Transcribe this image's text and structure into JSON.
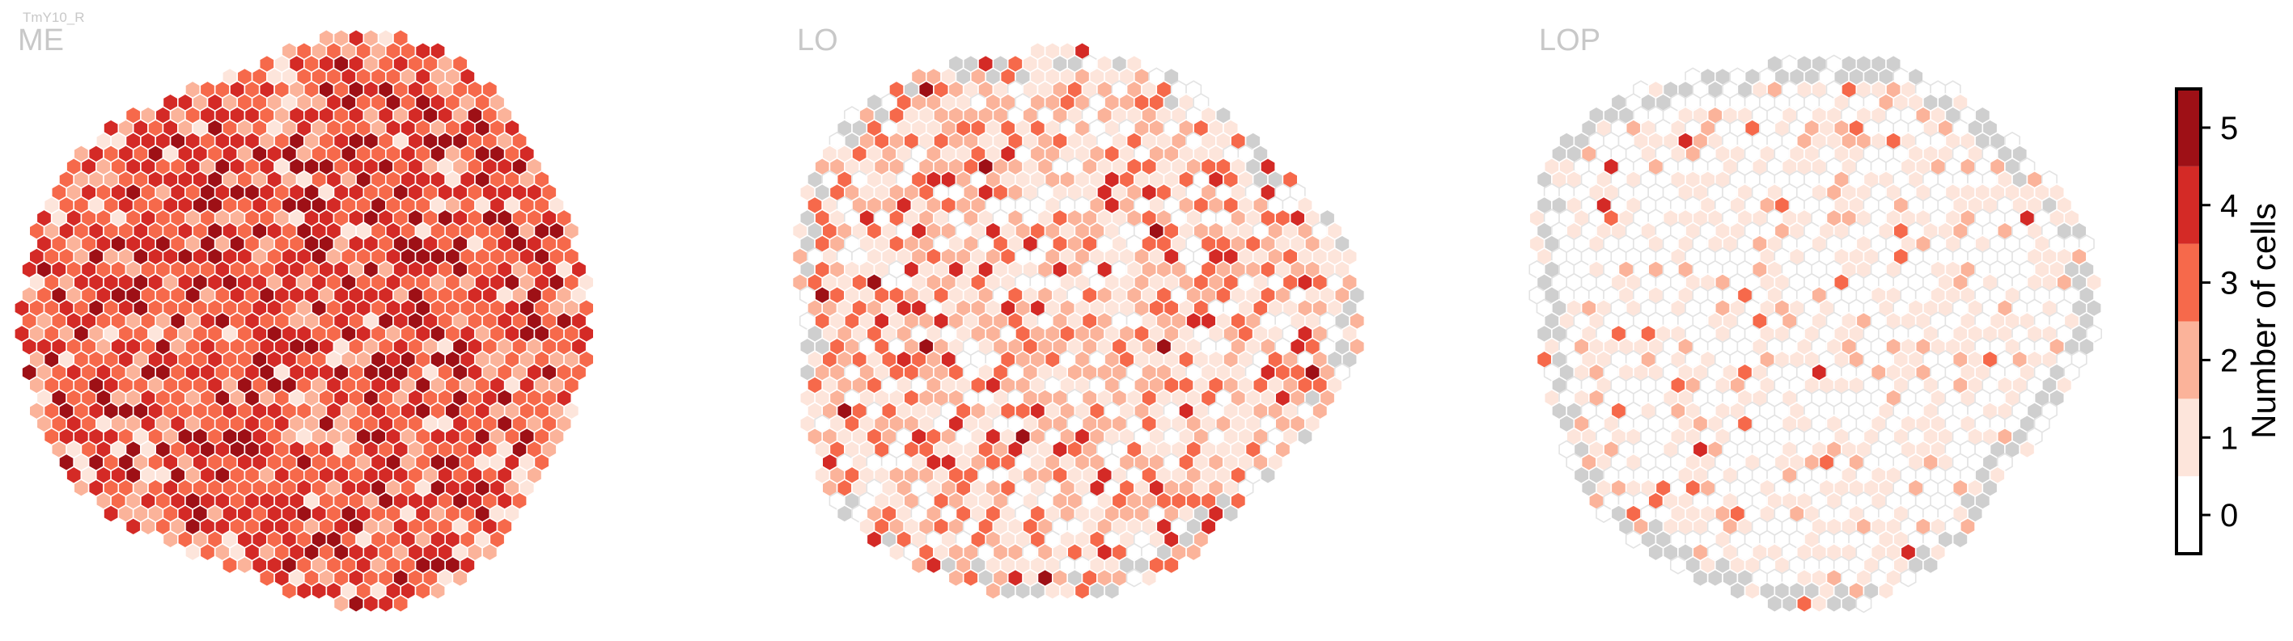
{
  "figure": {
    "cell_type_label": "TmY10_R"
  },
  "chart_data": [
    {
      "type": "heatmap",
      "title": "ME",
      "notes": "hexagonal column map; values are number of cells per column (0-5)",
      "outline_color": "#ffffff"
    },
    {
      "type": "heatmap",
      "title": "LO",
      "outline_color": "#ffffff"
    },
    {
      "type": "heatmap",
      "title": "LOP",
      "outline_color": "#ffffff"
    }
  ],
  "colorbar": {
    "label": "Number of cells",
    "ticks": [
      "0",
      "1",
      "2",
      "3",
      "4",
      "5"
    ],
    "range": [
      0,
      5
    ],
    "colors": [
      "#ffffff",
      "#fde5db",
      "#fbb39a",
      "#f6694b",
      "#d42a26",
      "#9e1016"
    ],
    "missing_color": "#cfcfcf"
  }
}
